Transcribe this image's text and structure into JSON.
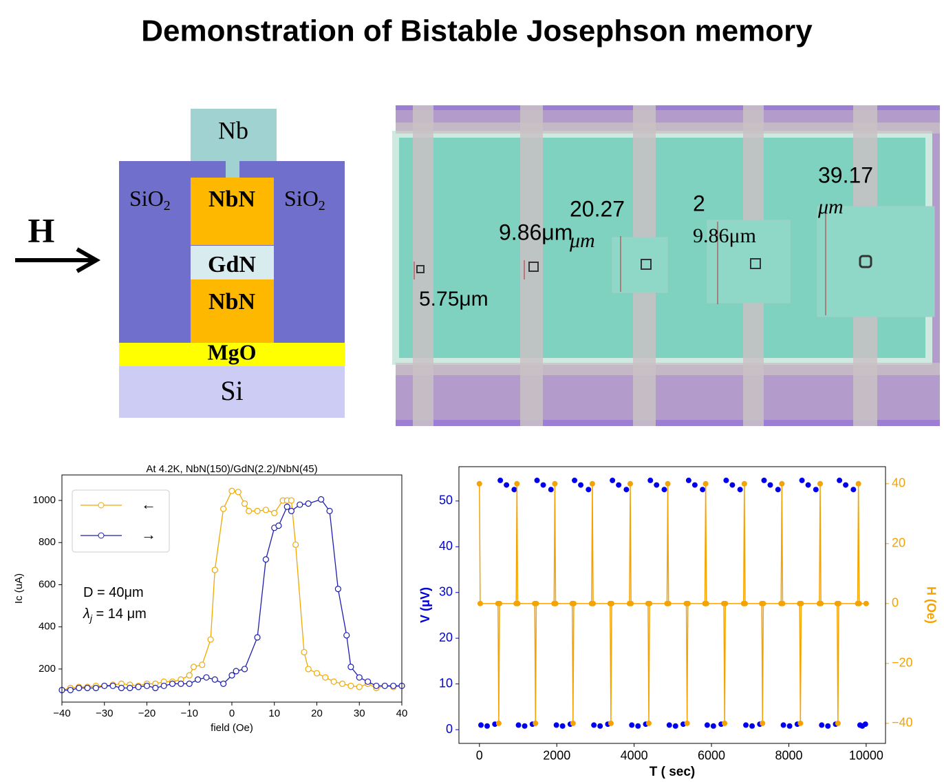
{
  "header": {
    "title": "Demonstration of Bistable Josephson memory"
  },
  "diagram": {
    "field": "H",
    "layers": {
      "top_contact": "Nb",
      "insulator_left": {
        "text": "SiO",
        "subscript": "2"
      },
      "insulator_right": {
        "text": "SiO",
        "subscript": "2"
      },
      "top_electrode": "NbN",
      "barrier": "GdN",
      "bottom_electrode": "NbN",
      "buffer": "MgO",
      "substrate": "Si"
    }
  },
  "micrograph": {
    "labels": [
      "5.75μm",
      "9.86μm",
      "20.27",
      "μm",
      "2",
      "9.86μm",
      "39.17",
      "μm"
    ]
  },
  "chart_data": [
    {
      "type": "line",
      "title": "At 4.2K, NbN(150)/GdN(2.2)/NbN(45)",
      "x_label": "field (Oe)",
      "y_label": "Ic (uA)",
      "xlim": [
        -40,
        40
      ],
      "ylim": [
        43,
        1121
      ],
      "xticks": [
        {
          "value": -40,
          "label": "−40"
        },
        {
          "value": -30,
          "label": "−30"
        },
        {
          "value": -20,
          "label": "−20"
        },
        {
          "value": -10,
          "label": "−10"
        },
        0,
        10,
        20,
        30,
        40
      ],
      "yticks": [
        200,
        400,
        600,
        800,
        1000
      ],
      "legend": "upper left",
      "annotations": [
        {
          "text": "D =  40μm"
        },
        {
          "symbol": "λ",
          "subscript": "j",
          "text": " = 14 μm"
        }
      ],
      "series": [
        {
          "name": "←",
          "color": "#f0a800",
          "mode": "lines+markers",
          "marker": "open",
          "x": [
            -40,
            -38,
            -36,
            -34,
            -32,
            -30,
            -28,
            -26,
            -24,
            -22,
            -20,
            -18,
            -16,
            -14,
            -12,
            -10,
            -9,
            -7,
            -5,
            -4,
            -2,
            0,
            1.5,
            3,
            4,
            6,
            8,
            10,
            12,
            13,
            14,
            15,
            17,
            18,
            20,
            22,
            24,
            26,
            28,
            30,
            32,
            34,
            36,
            38,
            40
          ],
          "values": [
            100,
            110,
            115,
            115,
            120,
            120,
            125,
            130,
            125,
            120,
            130,
            130,
            140,
            140,
            150,
            170,
            210,
            220,
            340,
            670,
            960,
            1045,
            1040,
            985,
            950,
            950,
            955,
            940,
            1000,
            1000,
            1000,
            790,
            280,
            200,
            180,
            160,
            140,
            130,
            120,
            115,
            130,
            110,
            120,
            115,
            120
          ]
        },
        {
          "name": "→",
          "color": "#1c1cb0",
          "mode": "lines+markers",
          "marker": "open",
          "x": [
            -40,
            -38,
            -36,
            -34,
            -32,
            -30,
            -28,
            -26,
            -24,
            -22,
            -20,
            -18,
            -16,
            -14,
            -12,
            -10,
            -8,
            -6,
            -4,
            -2,
            0,
            1,
            3,
            6,
            8,
            10,
            11,
            13,
            14,
            16,
            18,
            21,
            23,
            25,
            27,
            28,
            30,
            32,
            34,
            36,
            38,
            40
          ],
          "values": [
            100,
            100,
            110,
            110,
            110,
            120,
            120,
            110,
            110,
            115,
            120,
            110,
            120,
            130,
            130,
            130,
            150,
            160,
            150,
            130,
            170,
            190,
            200,
            350,
            720,
            870,
            880,
            970,
            950,
            980,
            985,
            1005,
            950,
            580,
            360,
            210,
            160,
            140,
            120,
            120,
            120,
            120
          ]
        }
      ]
    },
    {
      "type": "line",
      "x_label": "T ( sec)",
      "y_label": "V (μV)",
      "y2_label": "H (Oe)",
      "y_axis_color": "#0000dd",
      "y2_axis_color": "#f5a300",
      "xlim": [
        -530,
        10500
      ],
      "ylim": [
        -3,
        57.5
      ],
      "y2lim": [
        -46.7,
        45.7
      ],
      "xticks": [
        0,
        2000,
        4000,
        6000,
        8000,
        10000
      ],
      "yticks": [
        0,
        10,
        20,
        30,
        40,
        50
      ],
      "y2ticks": [
        {
          "value": -40,
          "label": "−40"
        },
        {
          "value": -20,
          "label": "−20"
        },
        0,
        20,
        40
      ],
      "series": [
        {
          "name": "V",
          "color": "#0000ee",
          "mode": "markers",
          "marker": "filled",
          "x": [
            40,
            200,
            400,
            540,
            700,
            900,
            1010,
            1170,
            1370,
            1490,
            1650,
            1850,
            1990,
            2150,
            2350,
            2460,
            2620,
            2820,
            2960,
            3120,
            3320,
            3440,
            3600,
            3800,
            3940,
            4100,
            4300,
            4420,
            4580,
            4780,
            4910,
            5070,
            5270,
            5410,
            5570,
            5770,
            5890,
            6050,
            6250,
            6380,
            6540,
            6740,
            6890,
            7050,
            7250,
            7360,
            7520,
            7720,
            7860,
            8020,
            8220,
            8340,
            8500,
            8700,
            8850,
            9010,
            9210,
            9310,
            9470,
            9670,
            9840,
            9900,
            9980
          ],
          "values": [
            1,
            0.8,
            1.2,
            54.5,
            53.5,
            52.5,
            1,
            0.8,
            1.2,
            54.5,
            53.5,
            52.5,
            1,
            0.8,
            1.2,
            54.5,
            53.5,
            52.5,
            1,
            0.8,
            1.2,
            54.5,
            53.5,
            52.5,
            1,
            0.8,
            1.2,
            54.5,
            53.5,
            52.5,
            1,
            0.8,
            1.2,
            54.5,
            53.5,
            52.5,
            1,
            0.8,
            1.2,
            54.5,
            53.5,
            52.5,
            1,
            0.8,
            1.2,
            54.5,
            53.5,
            52.5,
            1,
            0.8,
            1.2,
            54.5,
            53.5,
            52.5,
            1,
            0.8,
            1.2,
            54.5,
            53.5,
            52.5,
            1,
            0.8,
            1.2
          ]
        },
        {
          "name": "H",
          "color": "#f5a300",
          "mode": "lines+markers",
          "marker": "filled",
          "axis": "y2",
          "x": [
            0,
            20,
            480,
            500,
            520,
            950,
            970,
            990,
            1430,
            1450,
            1470,
            1930,
            1950,
            1970,
            2400,
            2420,
            2440,
            2900,
            2920,
            2940,
            3380,
            3400,
            3420,
            3880,
            3900,
            3920,
            4360,
            4380,
            4400,
            4850,
            4870,
            4890,
            5350,
            5370,
            5390,
            5830,
            5850,
            5870,
            6320,
            6340,
            6360,
            6830,
            6850,
            6870,
            7300,
            7320,
            7340,
            7800,
            7820,
            7840,
            8280,
            8300,
            8320,
            8790,
            8810,
            8830,
            9250,
            9270,
            9290,
            9780,
            9800,
            9820,
            10000
          ],
          "values": [
            40,
            0,
            0,
            -40,
            0,
            0,
            40,
            0,
            0,
            -40,
            0,
            0,
            40,
            0,
            0,
            -40,
            0,
            0,
            40,
            0,
            0,
            -40,
            0,
            0,
            40,
            0,
            0,
            -40,
            0,
            0,
            40,
            0,
            0,
            -40,
            0,
            0,
            40,
            0,
            0,
            -40,
            0,
            0,
            40,
            0,
            0,
            -40,
            0,
            0,
            40,
            0,
            0,
            -40,
            0,
            0,
            40,
            0,
            0,
            -40,
            0,
            0,
            40,
            0,
            0
          ]
        }
      ]
    }
  ]
}
